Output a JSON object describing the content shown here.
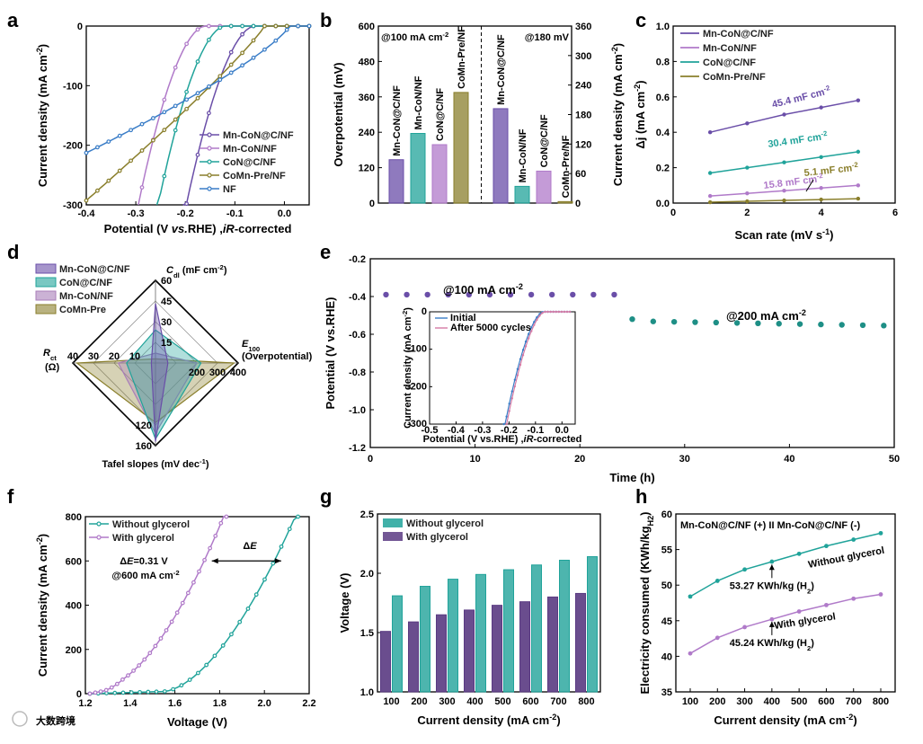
{
  "colors": {
    "purple": "#6a4ea8",
    "violet": "#b07ac9",
    "teal": "#20a39a",
    "olive": "#8a7f2c",
    "blue": "#3a7dc7",
    "darkteal": "#1e8f86",
    "lavender": "#b39bd6",
    "mauve": "#a87eb9",
    "pink": "#d57ba5",
    "dpurple": "#5a3a82"
  },
  "watermark": "大数跨境",
  "chart_data": [
    {
      "panel": "a",
      "type": "line",
      "xlabel_parts": [
        "Potential (V ",
        "vs.",
        "RHE) ,",
        "iR",
        "-corrected"
      ],
      "ylabel": "Current density (mA cm",
      "ylabel_sup": "-2",
      "ylabel_end": ")",
      "xlim": [
        -0.4,
        0.05
      ],
      "ylim": [
        -300,
        0
      ],
      "xticks": [
        "-0.4",
        "-0.3",
        "-0.2",
        "-0.1",
        "0.0"
      ],
      "yticks": [
        "0",
        "-100",
        "-200",
        "-300"
      ],
      "series": [
        {
          "name": "Mn-CoN@C/NF",
          "color": "purple",
          "onset": -0.06,
          "x300": -0.198,
          "shape": 1.8
        },
        {
          "name": "Mn-CoN/NF",
          "color": "violet",
          "onset": -0.16,
          "x300": -0.295,
          "shape": 1.8
        },
        {
          "name": "CoN@C/NF",
          "color": "teal",
          "onset": -0.12,
          "x300": -0.255,
          "shape": 1.8
        },
        {
          "name": "CoMn-Pre/NF",
          "color": "olive",
          "onset": -0.04,
          "x300": -0.41,
          "shape": 0.9
        },
        {
          "name": "NF",
          "color": "blue",
          "onset": 0.01,
          "x300": -0.62,
          "shape": 0.8
        }
      ]
    },
    {
      "panel": "b",
      "type": "bar",
      "ylabel_left_parts": [
        "Overpotential (mV)"
      ],
      "ylabel_right": "Current density (mA cm",
      "ylabel_right_sup": "-2",
      "ylabel_right_end": ")",
      "ylim_left": [
        0,
        600
      ],
      "ylim_right": [
        0,
        360
      ],
      "yticks_left": [
        "0",
        "120",
        "240",
        "360",
        "480",
        "600"
      ],
      "yticks_right": [
        "0",
        "60",
        "120",
        "180",
        "240",
        "300",
        "360"
      ],
      "annot_left": "@100 mA cm",
      "annot_left_sup": "-2",
      "annot_right": "@180 mV",
      "left_group": [
        {
          "label": "Mn-CoN@C/NF",
          "value": 147,
          "color": "purple"
        },
        {
          "label": "Mn-CoN/NF",
          "value": 236,
          "color": "teal"
        },
        {
          "label": "CoN@C/NF",
          "value": 198,
          "color": "violet"
        },
        {
          "label": "CoMn-Pre/NF",
          "value": 375,
          "color": "olive"
        }
      ],
      "right_group": [
        {
          "label": "Mn-CoN@C/NF",
          "value": 192,
          "color": "purple"
        },
        {
          "label": "Mn-CoN/NF",
          "value": 34,
          "color": "teal"
        },
        {
          "label": "CoN@C/NF",
          "value": 65,
          "color": "violet"
        },
        {
          "label": "CoMn-Pre/NF",
          "value": 3,
          "color": "olive"
        }
      ]
    },
    {
      "panel": "c",
      "type": "line",
      "xlabel": "Scan rate (mV s",
      "xlabel_sup": "-1",
      "xlabel_end": ")",
      "ylabel": "Δj (mA cm",
      "ylabel_sup": "-2",
      "ylabel_end": ")",
      "xlim": [
        0,
        6
      ],
      "ylim": [
        0,
        1.0
      ],
      "xticks": [
        "0",
        "2",
        "4",
        "6"
      ],
      "yticks": [
        "0.0",
        "0.2",
        "0.4",
        "0.6",
        "0.8",
        "1.0"
      ],
      "x": [
        1,
        2,
        3,
        4,
        5
      ],
      "series": [
        {
          "name": "Mn-CoN@C/NF",
          "color": "purple",
          "values": [
            0.4,
            0.45,
            0.5,
            0.54,
            0.58
          ],
          "label": "45.4 mF cm"
        },
        {
          "name": "Mn-CoN/NF",
          "color": "violet",
          "values": [
            0.04,
            0.055,
            0.07,
            0.085,
            0.1
          ],
          "label": "15.8 mF cm"
        },
        {
          "name": "CoN@C/NF",
          "color": "teal",
          "values": [
            0.17,
            0.2,
            0.23,
            0.26,
            0.29
          ],
          "label": "30.4 mF cm"
        },
        {
          "name": "CoMn-Pre/NF",
          "color": "olive",
          "values": [
            0.005,
            0.01,
            0.015,
            0.02,
            0.025
          ],
          "label": "5.1 mF cm"
        }
      ],
      "label_sup": "-2"
    },
    {
      "panel": "d",
      "type": "radar",
      "axes": [
        {
          "name": "C",
          "sub": "dl",
          "unit": " (mF cm",
          "unit_sup": "-2",
          "unit_end": ")",
          "ticks": [
            "15",
            "30",
            "45",
            "60"
          ]
        },
        {
          "name": "E",
          "sub": "100",
          "unit": "(Overpotential)",
          "ticks": [
            "200",
            "300",
            "400"
          ]
        },
        {
          "name": "Tafel slopes (mV dec",
          "unit_sup": "-1",
          "unit_end": ")",
          "ticks": [
            "120",
            "160"
          ]
        },
        {
          "name": "R",
          "sub": "ct",
          "unit": "(Ω)",
          "ticks": [
            "10",
            "20",
            "30",
            "40"
          ]
        }
      ],
      "series": [
        {
          "name": "Mn-CoN@C/NF",
          "color": "purple",
          "values": [
            0.72,
            0.15,
            0.95,
            0.05
          ]
        },
        {
          "name": "CoN@C/NF",
          "color": "teal",
          "values": [
            0.4,
            0.55,
            0.92,
            0.35
          ]
        },
        {
          "name": "Mn-CoN/NF",
          "color": "mauve",
          "values": [
            0.12,
            0.5,
            0.85,
            0.45
          ]
        },
        {
          "name": "CoMn-Pre",
          "color": "olive",
          "values": [
            0.05,
            0.95,
            0.72,
            0.95
          ]
        }
      ]
    },
    {
      "panel": "e",
      "type": "scatter",
      "xlabel": "Time (h)",
      "ylabel": "Potential (V vs.RHE)",
      "xlim": [
        0,
        50
      ],
      "ylim": [
        -1.2,
        -0.2
      ],
      "xticks": [
        "0",
        "10",
        "20",
        "30",
        "40",
        "50"
      ],
      "yticks": [
        "-0.2",
        "-0.4",
        "-0.6",
        "-0.8",
        "-1.0",
        "-1.2"
      ],
      "seg1": {
        "label": "@100 mA cm",
        "sup": "-2",
        "x_start": 1.5,
        "x_end": 25,
        "y": -0.39,
        "color": "purple"
      },
      "seg2": {
        "label": "@200 mA cm",
        "sup": "-2",
        "x_start": 25,
        "x_end": 50,
        "y_start": -0.52,
        "y_end": -0.545,
        "color": "darkteal"
      },
      "inset": {
        "xlabel_parts": [
          "Potential (V vs.RHE) ,",
          "iR",
          "-corrected"
        ],
        "ylabel": "Current density (mA cm",
        "ylabel_sup": "-2",
        "ylabel_end": ")",
        "xticks": [
          "-0.5",
          "-0.4",
          "-0.3",
          "-0.2",
          "-0.1",
          "0.0"
        ],
        "yticks": [
          "0",
          "-100",
          "-200",
          "-300"
        ],
        "series": [
          {
            "name": "Initial",
            "color": "blue"
          },
          {
            "name": "After 5000 cycles",
            "color": "pink"
          }
        ]
      }
    },
    {
      "panel": "f",
      "type": "line",
      "xlabel": "Voltage (V)",
      "ylabel": "Current density (mA cm",
      "ylabel_sup": "-2",
      "ylabel_end": ")",
      "xlim": [
        1.2,
        2.2
      ],
      "ylim": [
        0,
        800
      ],
      "xticks": [
        "1.2",
        "1.4",
        "1.6",
        "1.8",
        "2.0",
        "2.2"
      ],
      "yticks": [
        "0",
        "200",
        "400",
        "600",
        "800"
      ],
      "series": [
        {
          "name": "Without glycerol",
          "color": "teal",
          "onset": 1.55,
          "x800": 2.15
        },
        {
          "name": "With glycerol",
          "color": "violet",
          "onset": 1.28,
          "x800": 1.83
        }
      ],
      "de_label": "ΔE",
      "annot1": "ΔE=0.31 V",
      "annot2": "@600 mA cm",
      "annot2_sup": "-2"
    },
    {
      "panel": "g",
      "type": "bar",
      "xlabel": "Current density (mA cm",
      "xlabel_sup": "-2",
      "xlabel_end": ")",
      "ylabel": "Voltage (V)",
      "ylim": [
        1.0,
        2.5
      ],
      "yticks": [
        "1.0",
        "1.5",
        "2.0",
        "2.5"
      ],
      "categories": [
        "100",
        "200",
        "300",
        "400",
        "500",
        "600",
        "700",
        "800"
      ],
      "series": [
        {
          "name": "Without glycerol",
          "color": "teal",
          "values": [
            1.81,
            1.89,
            1.95,
            1.99,
            2.03,
            2.07,
            2.11,
            2.14
          ]
        },
        {
          "name": "With glycerol",
          "color": "dpurple",
          "values": [
            1.51,
            1.59,
            1.65,
            1.69,
            1.73,
            1.76,
            1.8,
            1.83
          ]
        }
      ]
    },
    {
      "panel": "h",
      "type": "line",
      "xlabel": "Current density (mA cm",
      "xlabel_sup": "-2",
      "xlabel_end": ")",
      "ylabel": "Electricity consumed (KWh/kg",
      "ylabel_sub": "H2",
      "ylabel_end": ")",
      "ylim": [
        35,
        60
      ],
      "yticks": [
        "35",
        "40",
        "45",
        "50",
        "55",
        "60"
      ],
      "categories": [
        "100",
        "200",
        "300",
        "400",
        "500",
        "600",
        "700",
        "800"
      ],
      "title": "Mn-CoN@C/NF (+) II Mn-CoN@C/NF (-)",
      "series": [
        {
          "name": "Without glycerol",
          "color": "teal",
          "values": [
            48.4,
            50.6,
            52.2,
            53.3,
            54.4,
            55.5,
            56.4,
            57.3
          ]
        },
        {
          "name": "With glycerol",
          "color": "violet",
          "values": [
            40.4,
            42.6,
            44.1,
            45.2,
            46.3,
            47.2,
            48.1,
            48.7
          ]
        }
      ],
      "annot1": "53.27 KWh/kg (H",
      "annot2": "45.24 KWh/kg (H",
      "annot_end": ")",
      "annot_sub": "2"
    }
  ]
}
